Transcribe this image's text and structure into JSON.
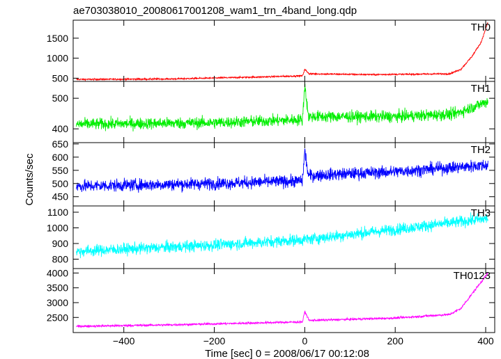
{
  "chart_data": {
    "type": "line",
    "title": "ae703038010_20080617001208_wam1_trn_4band_long.qdp",
    "xlabel": "Time [sec] 0 = 2008/06/17 00:12:08",
    "ylabel": "Counts/sec",
    "xlim": [
      -512,
      420
    ],
    "x_ticks": [
      -400,
      -200,
      0,
      200,
      400
    ],
    "x_tick_labels": [
      "−400",
      "−200",
      "0",
      "200",
      "400"
    ],
    "x_range": [
      -505,
      405
    ],
    "grid": false,
    "series": [
      {
        "name": "TH0",
        "color": "#ff0000",
        "ylim": [
          420,
          1950
        ],
        "y_ticks": [
          500,
          1000,
          1500
        ],
        "y_tick_labels": [
          "500",
          "1000",
          "1500"
        ],
        "trend": [
          [
            -505,
            470
          ],
          [
            -300,
            480
          ],
          [
            -100,
            530
          ],
          [
            -5,
            560
          ],
          [
            0,
            720
          ],
          [
            10,
            610
          ],
          [
            150,
            590
          ],
          [
            320,
            610
          ],
          [
            345,
            720
          ],
          [
            370,
            1050
          ],
          [
            390,
            1400
          ],
          [
            405,
            1900
          ]
        ],
        "noise": 18
      },
      {
        "name": "TH1",
        "color": "#00ee00",
        "ylim": [
          355,
          555
        ],
        "y_ticks": [
          400,
          500
        ],
        "y_tick_labels": [
          "400",
          "500"
        ],
        "trend": [
          [
            -505,
            415
          ],
          [
            -200,
            420
          ],
          [
            -5,
            430
          ],
          [
            0,
            545
          ],
          [
            8,
            440
          ],
          [
            200,
            440
          ],
          [
            330,
            448
          ],
          [
            370,
            470
          ],
          [
            405,
            490
          ]
        ],
        "noise": 18
      },
      {
        "name": "TH2",
        "color": "#0000ff",
        "ylim": [
          415,
          655
        ],
        "y_ticks": [
          450,
          500,
          550,
          600,
          650
        ],
        "y_tick_labels": [
          "450",
          "500",
          "550",
          "600",
          "650"
        ],
        "trend": [
          [
            -505,
            490
          ],
          [
            -200,
            500
          ],
          [
            -5,
            510
          ],
          [
            0,
            625
          ],
          [
            8,
            530
          ],
          [
            200,
            545
          ],
          [
            405,
            570
          ]
        ],
        "noise": 22
      },
      {
        "name": "TH3",
        "color": "#00ffff",
        "ylim": [
          740,
          1140
        ],
        "y_ticks": [
          800,
          900,
          1000,
          1100
        ],
        "y_tick_labels": [
          "800",
          "900",
          "1000",
          "1100"
        ],
        "trend": [
          [
            -505,
            850
          ],
          [
            -200,
            890
          ],
          [
            0,
            925
          ],
          [
            200,
            990
          ],
          [
            405,
            1060
          ]
        ],
        "noise": 35
      },
      {
        "name": "TH0123",
        "color": "#ff00ff",
        "ylim": [
          1990,
          4150
        ],
        "y_ticks": [
          2500,
          3000,
          3500,
          4000
        ],
        "y_tick_labels": [
          "2500",
          "3000",
          "3500",
          "4000"
        ],
        "trend": [
          [
            -505,
            2200
          ],
          [
            -300,
            2250
          ],
          [
            -5,
            2350
          ],
          [
            0,
            2700
          ],
          [
            10,
            2400
          ],
          [
            200,
            2480
          ],
          [
            320,
            2600
          ],
          [
            345,
            2800
          ],
          [
            370,
            3300
          ],
          [
            405,
            4000
          ]
        ],
        "noise": 35
      }
    ]
  }
}
